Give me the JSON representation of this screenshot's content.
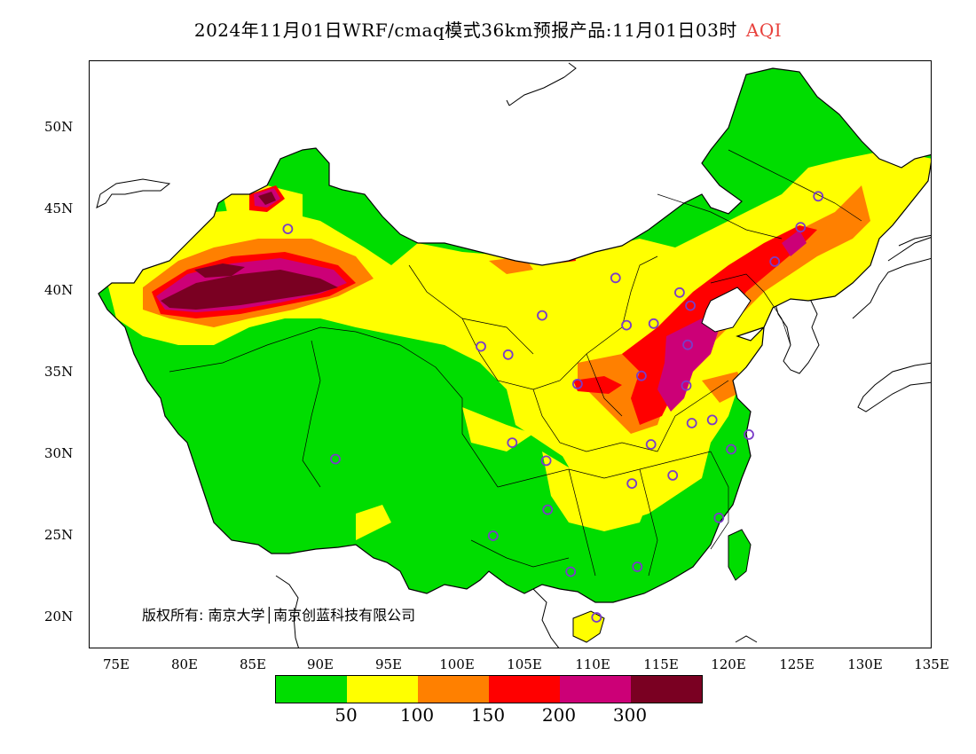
{
  "header": {
    "title": "2024年11月01日WRF/cmaq模式36km预报产品:11月01日03时",
    "variable": "AQI",
    "variable_color": "#e8413c"
  },
  "axes": {
    "lat_labels": [
      "50N",
      "45N",
      "40N",
      "35N",
      "30N",
      "25N",
      "20N"
    ],
    "lon_labels": [
      "75E",
      "80E",
      "85E",
      "90E",
      "95E",
      "100E",
      "105E",
      "110E",
      "115E",
      "120E",
      "125E",
      "130E",
      "135E"
    ],
    "lon_range": [
      73,
      135
    ],
    "lat_range": [
      18,
      54
    ]
  },
  "copyright": "版权所有: 南京大学│南京创蓝科技有限公司",
  "legend": {
    "colors": [
      "#00dd00",
      "#ffff00",
      "#ff8000",
      "#ff0000",
      "#cc0077",
      "#7a0022"
    ],
    "labels": [
      "50",
      "100",
      "150",
      "200",
      "300"
    ]
  },
  "stations": [
    [
      87.6,
      43.8
    ],
    [
      91.1,
      29.7
    ],
    [
      101.8,
      36.6
    ],
    [
      103.8,
      36.1
    ],
    [
      106.3,
      38.5
    ],
    [
      104.1,
      30.7
    ],
    [
      106.6,
      29.6
    ],
    [
      106.7,
      26.6
    ],
    [
      102.7,
      25.0
    ],
    [
      108.4,
      22.8
    ],
    [
      110.3,
      20.0
    ],
    [
      113.3,
      23.1
    ],
    [
      112.9,
      28.2
    ],
    [
      114.3,
      30.6
    ],
    [
      113.6,
      34.8
    ],
    [
      112.5,
      37.9
    ],
    [
      111.7,
      40.8
    ],
    [
      114.5,
      38.0
    ],
    [
      116.4,
      39.9
    ],
    [
      117.2,
      39.1
    ],
    [
      117.0,
      36.7
    ],
    [
      117.3,
      31.9
    ],
    [
      118.8,
      32.1
    ],
    [
      120.2,
      30.3
    ],
    [
      121.5,
      31.2
    ],
    [
      119.3,
      26.1
    ],
    [
      115.9,
      28.7
    ],
    [
      108.9,
      34.3
    ],
    [
      123.4,
      41.8
    ],
    [
      125.3,
      43.9
    ],
    [
      126.6,
      45.8
    ],
    [
      116.9,
      34.2
    ]
  ],
  "station_color": "#7a3cc8"
}
